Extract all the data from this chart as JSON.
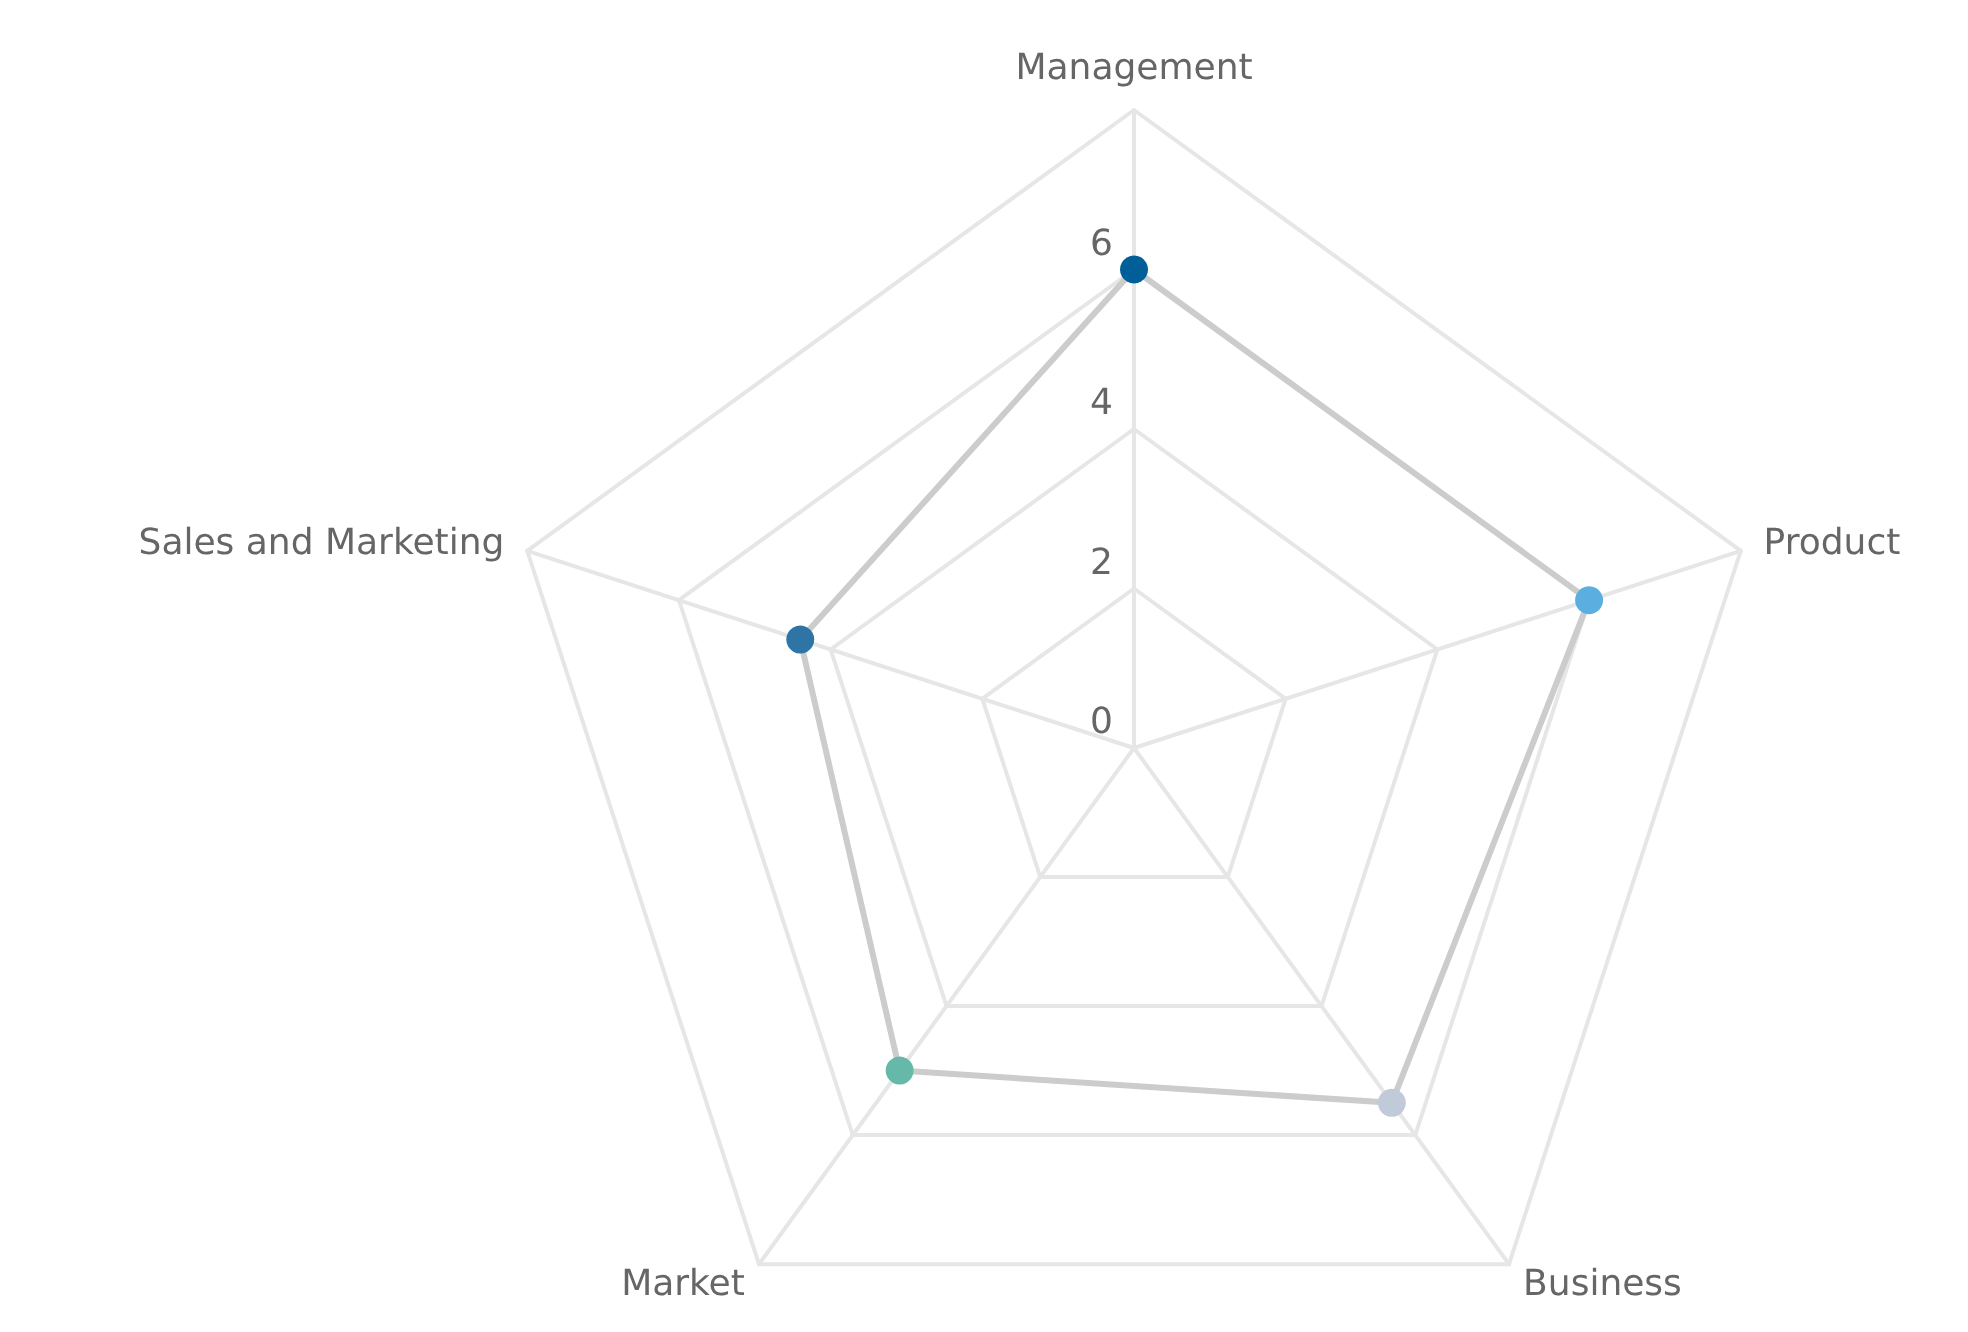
{
  "chart_data": {
    "type": "radar",
    "categories": [
      "Management",
      "Product",
      "Business",
      "Market",
      "Sales and Marketing"
    ],
    "series": [
      {
        "color": "#cccccc",
        "colors": [
          "#005f99",
          "#5aafe0",
          "#c0cad8",
          "#66b8a8",
          "#2e75a6"
        ],
        "values": [
          6,
          6,
          5.5,
          5,
          4.4
        ]
      }
    ],
    "ylim": [
      0,
      8
    ],
    "yticks": [
      0,
      2,
      4,
      6
    ],
    "grid": true,
    "marker": "circle",
    "line_style": "solid"
  }
}
